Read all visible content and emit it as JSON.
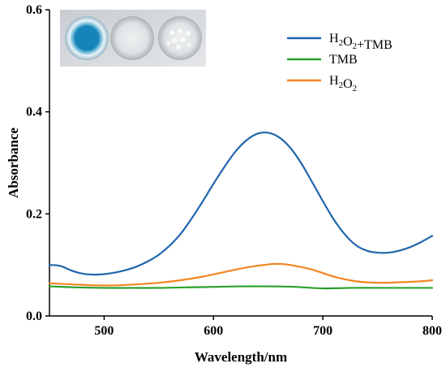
{
  "chart_data": {
    "type": "line",
    "xlabel": "Wavelength/nm",
    "ylabel": "Absorbance",
    "xlim": [
      450,
      800
    ],
    "ylim": [
      0.0,
      0.6
    ],
    "x_ticks": [
      500,
      600,
      700,
      800
    ],
    "x_tick_labels": [
      "500",
      "600",
      "700",
      "800"
    ],
    "y_ticks": [
      0.0,
      0.2,
      0.4,
      0.6
    ],
    "y_tick_labels": [
      "0.0",
      "0.2",
      "0.4",
      "0.6"
    ],
    "grid": false,
    "legend_position": "top-right",
    "inset": "photo of three wells: blue, clear, clear",
    "series": [
      {
        "name": "H2O2+TMB",
        "label_parts": [
          [
            "H",
            false
          ],
          [
            "2",
            true
          ],
          [
            "O",
            false
          ],
          [
            "2",
            true
          ],
          [
            "+TMB",
            false
          ]
        ],
        "color": "#2166ac",
        "x": [
          450,
          460,
          470,
          480,
          490,
          500,
          510,
          520,
          530,
          540,
          550,
          560,
          570,
          580,
          590,
          600,
          610,
          620,
          630,
          640,
          650,
          660,
          670,
          680,
          690,
          700,
          710,
          720,
          730,
          740,
          750,
          760,
          770,
          780,
          790,
          800
        ],
        "values": [
          0.1,
          0.098,
          0.089,
          0.083,
          0.081,
          0.082,
          0.085,
          0.09,
          0.097,
          0.107,
          0.12,
          0.138,
          0.161,
          0.191,
          0.224,
          0.259,
          0.292,
          0.322,
          0.344,
          0.357,
          0.359,
          0.35,
          0.33,
          0.3,
          0.263,
          0.225,
          0.189,
          0.16,
          0.139,
          0.128,
          0.124,
          0.124,
          0.128,
          0.135,
          0.145,
          0.157
        ]
      },
      {
        "name": "TMB",
        "label_parts": [
          [
            "TMB",
            false
          ]
        ],
        "color": "#2ca02c",
        "x": [
          450,
          475,
          500,
          525,
          550,
          575,
          600,
          625,
          650,
          675,
          700,
          725,
          750,
          775,
          800
        ],
        "values": [
          0.058,
          0.056,
          0.055,
          0.055,
          0.055,
          0.056,
          0.057,
          0.058,
          0.058,
          0.057,
          0.054,
          0.055,
          0.055,
          0.055,
          0.055
        ]
      },
      {
        "name": "H2O2",
        "label_parts": [
          [
            "H",
            false
          ],
          [
            "2",
            true
          ],
          [
            "O",
            false
          ],
          [
            "2",
            true
          ]
        ],
        "color": "#f28522",
        "x": [
          450,
          470,
          490,
          510,
          530,
          550,
          570,
          590,
          610,
          630,
          650,
          660,
          670,
          690,
          710,
          730,
          750,
          770,
          790,
          800
        ],
        "values": [
          0.064,
          0.062,
          0.06,
          0.06,
          0.062,
          0.065,
          0.07,
          0.077,
          0.086,
          0.095,
          0.101,
          0.102,
          0.1,
          0.091,
          0.077,
          0.068,
          0.065,
          0.066,
          0.068,
          0.07
        ]
      }
    ]
  }
}
